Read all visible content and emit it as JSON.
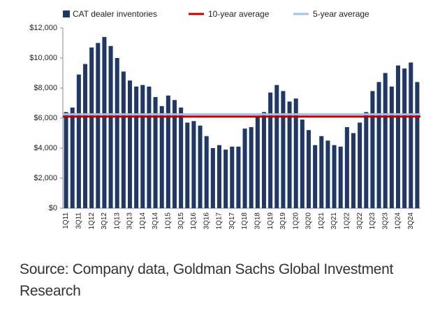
{
  "chart_data": {
    "type": "bar",
    "categories": [
      "1Q11",
      null,
      "3Q11",
      null,
      "1Q12",
      null,
      "3Q12",
      null,
      "1Q13",
      null,
      "3Q13",
      null,
      "1Q14",
      null,
      "3Q14",
      null,
      "1Q15",
      null,
      "3Q15",
      null,
      "1Q16",
      null,
      "3Q16",
      null,
      "1Q17",
      null,
      "3Q17",
      null,
      "1Q18",
      null,
      "3Q18",
      null,
      "1Q19",
      null,
      "3Q19",
      null,
      "1Q20",
      null,
      "3Q20",
      null,
      "1Q21",
      null,
      "3Q21",
      null,
      "1Q22",
      null,
      "3Q22",
      null,
      "1Q23",
      null,
      "3Q23",
      null,
      "1Q24",
      null,
      "3Q24",
      null
    ],
    "series": [
      {
        "name": "CAT dealer inventories",
        "color": "#1f3864",
        "values": [
          6400,
          6700,
          8900,
          9600,
          10700,
          11000,
          11400,
          10800,
          10000,
          9100,
          8500,
          8100,
          8200,
          8100,
          7400,
          6800,
          7500,
          7200,
          6700,
          5700,
          5800,
          5500,
          4800,
          4000,
          4200,
          3900,
          4100,
          4100,
          5300,
          5400,
          6100,
          6400,
          7700,
          8200,
          7800,
          7100,
          7300,
          5900,
          5200,
          4200,
          4800,
          4500,
          4200,
          4100,
          5400,
          5000,
          5700,
          6400,
          7800,
          8400,
          9000,
          8100,
          9500,
          9300,
          9700,
          8400
        ]
      }
    ],
    "reference_lines": [
      {
        "name": "10-year average",
        "color": "#c00000",
        "value": 6100
      },
      {
        "name": "5-year average",
        "color": "#9dc3e6",
        "value": 6250
      }
    ],
    "ylim": [
      0,
      12000
    ],
    "yticks": [
      {
        "value": 0,
        "label": "$0"
      },
      {
        "value": 2000,
        "label": "$2,000"
      },
      {
        "value": 4000,
        "label": "$4,000"
      },
      {
        "value": 6000,
        "label": "$6,000"
      },
      {
        "value": 8000,
        "label": "$8,000"
      },
      {
        "value": 10000,
        "label": "$10,000"
      },
      {
        "value": 12000,
        "label": "$12,000"
      }
    ],
    "grid": false,
    "source": "Source: Company data, Goldman Sachs Global Investment Research"
  }
}
